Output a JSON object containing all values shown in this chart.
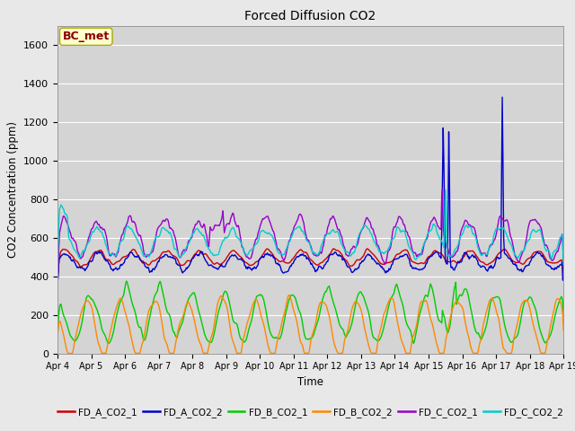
{
  "title": "Forced Diffusion CO2",
  "xlabel": "Time",
  "ylabel": "CO2 Concentration (ppm)",
  "ylim": [
    0,
    1700
  ],
  "annotation_text": "BC_met",
  "fig_bg_color": "#e8e8e8",
  "plot_bg_color": "#d4d4d4",
  "series": {
    "FD_A_CO2_1": {
      "color": "#cc0000",
      "lw": 1.0
    },
    "FD_A_CO2_2": {
      "color": "#0000cc",
      "lw": 1.0
    },
    "FD_B_CO2_1": {
      "color": "#00cc00",
      "lw": 1.0
    },
    "FD_B_CO2_2": {
      "color": "#ff8800",
      "lw": 1.0
    },
    "FD_C_CO2_1": {
      "color": "#9900cc",
      "lw": 1.0
    },
    "FD_C_CO2_2": {
      "color": "#00cccc",
      "lw": 1.0
    }
  },
  "xtick_labels": [
    "Apr 4",
    "Apr 5",
    "Apr 6",
    "Apr 7",
    "Apr 8",
    "Apr 9",
    "Apr 10",
    "Apr 11",
    "Apr 12",
    "Apr 13",
    "Apr 14",
    "Apr 15",
    "Apr 16",
    "Apr 17",
    "Apr 18",
    "Apr 19"
  ],
  "ytick_labels": [
    0,
    200,
    400,
    600,
    800,
    1000,
    1200,
    1400,
    1600
  ],
  "n_points": 720
}
